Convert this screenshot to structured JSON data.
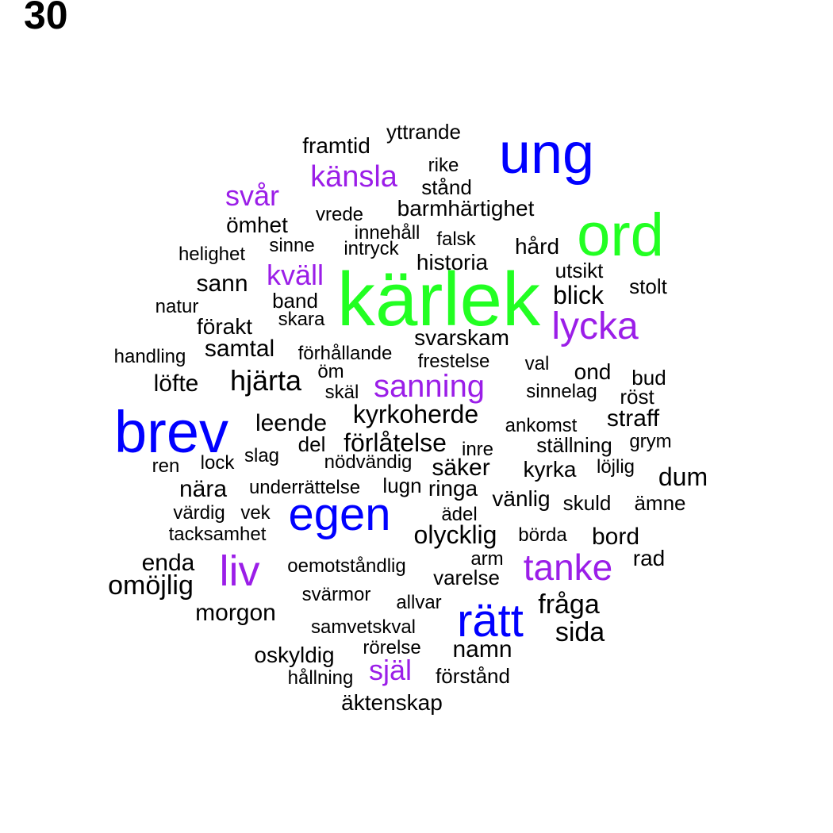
{
  "panel_number": "30",
  "colors": {
    "black": "#000000",
    "blue": "#0000ff",
    "green": "#22ff22",
    "purple": "#9b1ee8"
  },
  "words": [
    {
      "text": "kärlek",
      "color": "green"
    },
    {
      "text": "ord",
      "color": "green"
    },
    {
      "text": "ung",
      "color": "blue"
    },
    {
      "text": "brev",
      "color": "blue"
    },
    {
      "text": "egen",
      "color": "blue"
    },
    {
      "text": "rätt",
      "color": "blue"
    },
    {
      "text": "lycka",
      "color": "purple"
    },
    {
      "text": "tanke",
      "color": "purple"
    },
    {
      "text": "liv",
      "color": "purple"
    },
    {
      "text": "känsla",
      "color": "purple"
    },
    {
      "text": "svår",
      "color": "purple"
    },
    {
      "text": "kväll",
      "color": "purple"
    },
    {
      "text": "sanning",
      "color": "purple"
    },
    {
      "text": "själ",
      "color": "purple"
    },
    {
      "text": "yttrande",
      "color": "black"
    },
    {
      "text": "framtid",
      "color": "black"
    },
    {
      "text": "rike",
      "color": "black"
    },
    {
      "text": "stånd",
      "color": "black"
    },
    {
      "text": "barmhärtighet",
      "color": "black"
    },
    {
      "text": "vrede",
      "color": "black"
    },
    {
      "text": "ömhet",
      "color": "black"
    },
    {
      "text": "innehåll",
      "color": "black"
    },
    {
      "text": "falsk",
      "color": "black"
    },
    {
      "text": "hård",
      "color": "black"
    },
    {
      "text": "sinne",
      "color": "black"
    },
    {
      "text": "intryck",
      "color": "black"
    },
    {
      "text": "helighet",
      "color": "black"
    },
    {
      "text": "historia",
      "color": "black"
    },
    {
      "text": "utsikt",
      "color": "black"
    },
    {
      "text": "sann",
      "color": "black"
    },
    {
      "text": "stolt",
      "color": "black"
    },
    {
      "text": "blick",
      "color": "black"
    },
    {
      "text": "natur",
      "color": "black"
    },
    {
      "text": "band",
      "color": "black"
    },
    {
      "text": "skara",
      "color": "black"
    },
    {
      "text": "förakt",
      "color": "black"
    },
    {
      "text": "svarskam",
      "color": "black"
    },
    {
      "text": "handling",
      "color": "black"
    },
    {
      "text": "samtal",
      "color": "black"
    },
    {
      "text": "förhållande",
      "color": "black"
    },
    {
      "text": "frestelse",
      "color": "black"
    },
    {
      "text": "val",
      "color": "black"
    },
    {
      "text": "ond",
      "color": "black"
    },
    {
      "text": "bud",
      "color": "black"
    },
    {
      "text": "öm",
      "color": "black"
    },
    {
      "text": "löfte",
      "color": "black"
    },
    {
      "text": "hjärta",
      "color": "black"
    },
    {
      "text": "skäl",
      "color": "black"
    },
    {
      "text": "sinnelag",
      "color": "black"
    },
    {
      "text": "röst",
      "color": "black"
    },
    {
      "text": "kyrkoherde",
      "color": "black"
    },
    {
      "text": "straff",
      "color": "black"
    },
    {
      "text": "leende",
      "color": "black"
    },
    {
      "text": "ankomst",
      "color": "black"
    },
    {
      "text": "del",
      "color": "black"
    },
    {
      "text": "förlåtelse",
      "color": "black"
    },
    {
      "text": "inre",
      "color": "black"
    },
    {
      "text": "ställning",
      "color": "black"
    },
    {
      "text": "grym",
      "color": "black"
    },
    {
      "text": "slag",
      "color": "black"
    },
    {
      "text": "ren",
      "color": "black"
    },
    {
      "text": "lock",
      "color": "black"
    },
    {
      "text": "nödvändig",
      "color": "black"
    },
    {
      "text": "säker",
      "color": "black"
    },
    {
      "text": "kyrka",
      "color": "black"
    },
    {
      "text": "löjlig",
      "color": "black"
    },
    {
      "text": "dum",
      "color": "black"
    },
    {
      "text": "nära",
      "color": "black"
    },
    {
      "text": "underrättelse",
      "color": "black"
    },
    {
      "text": "lugn",
      "color": "black"
    },
    {
      "text": "ringa",
      "color": "black"
    },
    {
      "text": "vänlig",
      "color": "black"
    },
    {
      "text": "skuld",
      "color": "black"
    },
    {
      "text": "ämne",
      "color": "black"
    },
    {
      "text": "värdig",
      "color": "black"
    },
    {
      "text": "vek",
      "color": "black"
    },
    {
      "text": "ädel",
      "color": "black"
    },
    {
      "text": "tacksamhet",
      "color": "black"
    },
    {
      "text": "olycklig",
      "color": "black"
    },
    {
      "text": "börda",
      "color": "black"
    },
    {
      "text": "bord",
      "color": "black"
    },
    {
      "text": "enda",
      "color": "black"
    },
    {
      "text": "arm",
      "color": "black"
    },
    {
      "text": "rad",
      "color": "black"
    },
    {
      "text": "oemotståndlig",
      "color": "black"
    },
    {
      "text": "varelse",
      "color": "black"
    },
    {
      "text": "omöjlig",
      "color": "black"
    },
    {
      "text": "svärmor",
      "color": "black"
    },
    {
      "text": "allvar",
      "color": "black"
    },
    {
      "text": "fråga",
      "color": "black"
    },
    {
      "text": "morgon",
      "color": "black"
    },
    {
      "text": "samvetskval",
      "color": "black"
    },
    {
      "text": "sida",
      "color": "black"
    },
    {
      "text": "rörelse",
      "color": "black"
    },
    {
      "text": "namn",
      "color": "black"
    },
    {
      "text": "oskyldig",
      "color": "black"
    },
    {
      "text": "hållning",
      "color": "black"
    },
    {
      "text": "förstånd",
      "color": "black"
    },
    {
      "text": "äktenskap",
      "color": "black"
    }
  ]
}
